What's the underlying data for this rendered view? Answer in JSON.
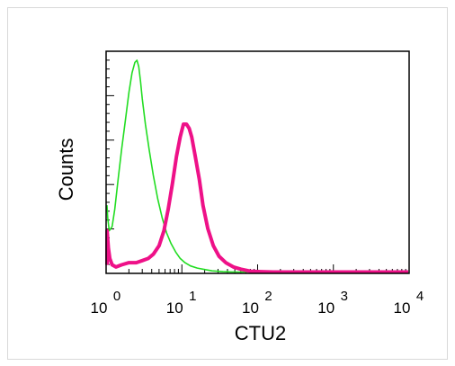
{
  "chart_data": {
    "type": "line",
    "title": "",
    "xlabel": "CTU2",
    "ylabel": "Counts",
    "x_scale": "log",
    "xlim": [
      1,
      10000
    ],
    "ylim": [
      0,
      1
    ],
    "x_ticks": [
      {
        "base": "10",
        "exp": "0"
      },
      {
        "base": "10",
        "exp": "1"
      },
      {
        "base": "10",
        "exp": "2"
      },
      {
        "base": "10",
        "exp": "3"
      },
      {
        "base": "10",
        "exp": "4"
      }
    ],
    "grid": false,
    "series": [
      {
        "color": "#22dd22",
        "x": [
          1.0,
          1.05,
          1.1,
          1.2,
          1.3,
          1.45,
          1.6,
          1.8,
          2.0,
          2.2,
          2.4,
          2.55,
          2.7,
          2.85,
          3.0,
          3.3,
          3.7,
          4.2,
          4.8,
          5.5,
          6.3,
          7.2,
          8.3,
          9.5,
          11,
          13,
          16,
          20,
          25,
          35,
          50,
          80,
          150,
          300,
          1000,
          10000
        ],
        "y": [
          0.32,
          0.26,
          0.2,
          0.22,
          0.3,
          0.45,
          0.58,
          0.72,
          0.85,
          0.94,
          0.99,
          1.0,
          0.97,
          0.9,
          0.82,
          0.7,
          0.58,
          0.46,
          0.35,
          0.26,
          0.19,
          0.14,
          0.1,
          0.07,
          0.05,
          0.035,
          0.025,
          0.018,
          0.012,
          0.008,
          0.005,
          0.003,
          0.002,
          0.001,
          0.0,
          0.0
        ]
      },
      {
        "color": "#ee1188",
        "x": [
          1.0,
          1.03,
          1.07,
          1.12,
          1.2,
          1.35,
          1.6,
          2.0,
          2.5,
          3.0,
          3.6,
          4.2,
          5.0,
          5.8,
          6.6,
          7.5,
          8.5,
          9.5,
          10.5,
          11.5,
          12.5,
          13.5,
          15,
          17,
          19,
          22,
          26,
          31,
          38,
          48,
          60,
          80,
          110,
          160,
          300,
          1000,
          3000,
          10000
        ],
        "y": [
          0.04,
          0.2,
          0.12,
          0.07,
          0.04,
          0.03,
          0.04,
          0.05,
          0.05,
          0.06,
          0.07,
          0.09,
          0.13,
          0.2,
          0.3,
          0.42,
          0.55,
          0.64,
          0.7,
          0.7,
          0.68,
          0.64,
          0.55,
          0.44,
          0.32,
          0.21,
          0.13,
          0.08,
          0.05,
          0.03,
          0.02,
          0.01,
          0.008,
          0.006,
          0.005,
          0.005,
          0.005,
          0.005
        ]
      }
    ]
  }
}
